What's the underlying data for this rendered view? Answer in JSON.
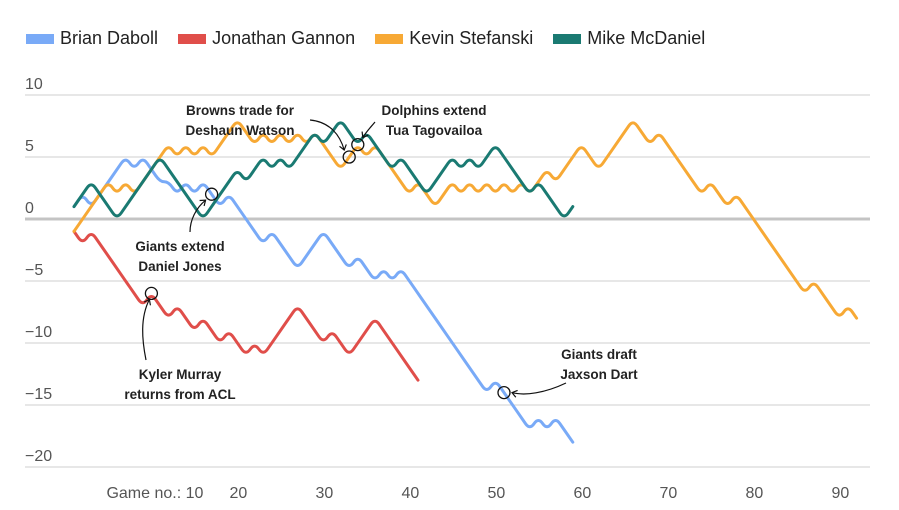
{
  "chart_data": {
    "type": "line",
    "title": "",
    "xlabel": "Game no.:",
    "ylabel": "",
    "xlim": [
      1,
      92
    ],
    "ylim": [
      -20,
      10
    ],
    "x_ticks": [
      10,
      20,
      30,
      40,
      50,
      60,
      70,
      80,
      90
    ],
    "x_tick_labels": [
      "Game no.: 10",
      "20",
      "30",
      "40",
      "50",
      "60",
      "70",
      "80",
      "90"
    ],
    "y_ticks": [
      10,
      5,
      0,
      -5,
      -10,
      -15,
      -20
    ],
    "y_tick_labels": [
      "10",
      "5",
      "0",
      "−5",
      "−10",
      "−15",
      "−20"
    ],
    "grid": true,
    "legend_position": "top-left",
    "series": [
      {
        "name": "Brian Daboll",
        "color": "#79aaf7",
        "start_game": 1,
        "values": [
          1,
          2,
          1,
          2,
          3,
          4,
          5,
          4,
          5,
          4,
          3,
          3,
          2,
          3,
          2,
          3,
          2,
          1,
          2,
          1,
          0,
          -1,
          -2,
          -1,
          -2,
          -3,
          -4,
          -3,
          -2,
          -1,
          -2,
          -3,
          -4,
          -3,
          -4,
          -5,
          -4,
          -5,
          -4,
          -5,
          -6,
          -7,
          -8,
          -9,
          -10,
          -11,
          -12,
          -13,
          -14,
          -13,
          -14,
          -15,
          -16,
          -17,
          -16,
          -17,
          -16,
          -17,
          -18
        ]
      },
      {
        "name": "Jonathan Gannon",
        "color": "#e04e4a",
        "start_game": 1,
        "values": [
          -1,
          -2,
          -1,
          -2,
          -3,
          -4,
          -5,
          -6,
          -7,
          -6,
          -7,
          -8,
          -7,
          -8,
          -9,
          -8,
          -9,
          -10,
          -9,
          -10,
          -11,
          -10,
          -11,
          -10,
          -9,
          -8,
          -7,
          -8,
          -9,
          -10,
          -9,
          -10,
          -11,
          -10,
          -9,
          -8,
          -9,
          -10,
          -11,
          -12,
          -13
        ]
      },
      {
        "name": "Kevin Stefanski",
        "color": "#f7a935",
        "start_game": 1,
        "values": [
          -1,
          0,
          1,
          2,
          3,
          2,
          3,
          2,
          3,
          4,
          5,
          6,
          5,
          6,
          5,
          6,
          5,
          6,
          7,
          8,
          7,
          6,
          7,
          6,
          7,
          6,
          7,
          6,
          7,
          6,
          5,
          4,
          5,
          6,
          5,
          6,
          5,
          4,
          3,
          2,
          3,
          2,
          1,
          2,
          3,
          2,
          3,
          2,
          3,
          2,
          3,
          2,
          3,
          2,
          3,
          4,
          3,
          4,
          5,
          6,
          5,
          4,
          5,
          6,
          7,
          8,
          7,
          6,
          7,
          6,
          5,
          4,
          3,
          2,
          3,
          2,
          1,
          2,
          1,
          0,
          -1,
          -2,
          -3,
          -4,
          -5,
          -6,
          -5,
          -6,
          -7,
          -8,
          -7,
          -8
        ]
      },
      {
        "name": "Mike McDaniel",
        "color": "#1a7a72",
        "start_game": 1,
        "values": [
          1,
          2,
          3,
          2,
          1,
          0,
          1,
          2,
          3,
          4,
          5,
          4,
          3,
          2,
          1,
          0,
          1,
          2,
          3,
          4,
          3,
          4,
          5,
          4,
          5,
          4,
          5,
          6,
          7,
          6,
          7,
          8,
          7,
          6,
          7,
          6,
          5,
          4,
          5,
          4,
          3,
          2,
          3,
          4,
          5,
          4,
          5,
          4,
          5,
          6,
          5,
          4,
          3,
          2,
          3,
          2,
          1,
          0,
          1
        ]
      }
    ],
    "annotations": [
      {
        "text": [
          "Browns trade for",
          "Deshaun Watson"
        ],
        "series": "Kevin Stefanski",
        "game": 33,
        "value": 5
      },
      {
        "text": [
          "Dolphins extend",
          "Tua Tagovailoa"
        ],
        "series": "Mike McDaniel",
        "game": 34,
        "value": 6
      },
      {
        "text": [
          "Giants extend",
          "Daniel Jones"
        ],
        "series": "Brian Daboll",
        "game": 17,
        "value": 2
      },
      {
        "text": [
          "Kyler Murray",
          "returns from ACL"
        ],
        "series": "Jonathan Gannon",
        "game": 10,
        "value": -6
      },
      {
        "text": [
          "Giants draft",
          "Jaxson Dart"
        ],
        "series": "Brian Daboll",
        "game": 51,
        "value": -14
      }
    ]
  }
}
